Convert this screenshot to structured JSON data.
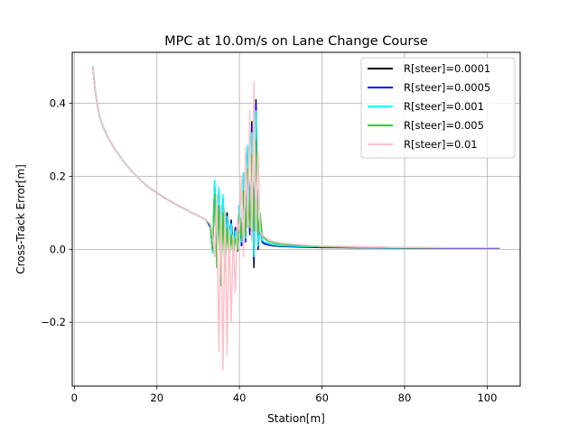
{
  "chart_data": {
    "type": "line",
    "title": "MPC at 10.0m/s on Lane Change Course",
    "xlabel": "Station[m]",
    "ylabel": "Cross-Track Error[m]",
    "xlim": [
      -0.5,
      108
    ],
    "ylim": [
      -0.375,
      0.54
    ],
    "xticks": [
      0,
      20,
      40,
      60,
      80,
      100
    ],
    "xtick_labels": [
      "0",
      "20",
      "40",
      "60",
      "80",
      "100"
    ],
    "yticks": [
      -0.2,
      0.0,
      0.2,
      0.4
    ],
    "ytick_labels": [
      "−0.2",
      "0.0",
      "0.2",
      "0.4"
    ],
    "grid": true,
    "legend_position": "top-right",
    "series": [
      {
        "name": "R[steer]=0.0001",
        "color": "#000000",
        "x": [
          4.5,
          5,
          5.5,
          6,
          6.5,
          7,
          8,
          9,
          10,
          12,
          14,
          16,
          18,
          20,
          22,
          24,
          26,
          28,
          30,
          32,
          33,
          33.5,
          34,
          34.5,
          35,
          35.5,
          36,
          36.5,
          37,
          37.5,
          38,
          38.5,
          39,
          39.5,
          40,
          40.5,
          41,
          41.5,
          42,
          42.5,
          43,
          43.5,
          44,
          44.5,
          45,
          45.5,
          46,
          47,
          48,
          50,
          55,
          60,
          70,
          80,
          90,
          100,
          103
        ],
        "y": [
          0.5,
          0.44,
          0.4,
          0.37,
          0.35,
          0.335,
          0.31,
          0.29,
          0.272,
          0.24,
          0.213,
          0.19,
          0.17,
          0.155,
          0.14,
          0.127,
          0.115,
          0.103,
          0.092,
          0.08,
          0.06,
          -0.01,
          0.18,
          0.02,
          0.16,
          -0.02,
          0.14,
          0.03,
          0.1,
          0.02,
          0.08,
          0.005,
          0.06,
          -0.005,
          0.12,
          0.01,
          0.2,
          0.03,
          0.28,
          0.05,
          0.35,
          -0.05,
          0.41,
          0.0,
          0.08,
          0.02,
          0.015,
          0.012,
          0.01,
          0.008,
          0.006,
          0.005,
          0.004,
          0.003,
          0.003,
          0.003,
          0.003
        ]
      },
      {
        "name": "R[steer]=0.0005",
        "color": "#0000ff",
        "x": [
          4.5,
          5,
          5.5,
          6,
          6.5,
          7,
          8,
          9,
          10,
          12,
          14,
          16,
          18,
          20,
          22,
          24,
          26,
          28,
          30,
          32,
          33,
          33.5,
          34,
          34.5,
          35,
          35.5,
          36,
          36.5,
          37,
          37.5,
          38,
          38.5,
          39,
          39.5,
          40,
          40.5,
          41,
          41.5,
          42,
          42.5,
          43,
          43.5,
          44,
          44.5,
          45,
          45.5,
          46,
          47,
          48,
          50,
          55,
          60,
          70,
          80,
          90,
          100,
          103
        ],
        "y": [
          0.5,
          0.44,
          0.4,
          0.37,
          0.35,
          0.335,
          0.31,
          0.29,
          0.272,
          0.24,
          0.213,
          0.19,
          0.17,
          0.155,
          0.14,
          0.127,
          0.115,
          0.103,
          0.092,
          0.08,
          0.06,
          -0.005,
          0.18,
          0.0,
          0.16,
          -0.03,
          0.14,
          0.02,
          0.09,
          0.015,
          0.075,
          0.0,
          0.055,
          0.0,
          0.12,
          0.01,
          0.2,
          0.02,
          0.28,
          0.04,
          0.34,
          -0.03,
          0.4,
          0.005,
          0.08,
          0.02,
          0.016,
          0.013,
          0.011,
          0.009,
          0.007,
          0.006,
          0.005,
          0.004,
          0.003,
          0.003,
          0.003
        ]
      },
      {
        "name": "R[steer]=0.001",
        "color": "#00ffff",
        "x": [
          4.5,
          5,
          5.5,
          6,
          6.5,
          7,
          8,
          9,
          10,
          12,
          14,
          16,
          18,
          20,
          22,
          24,
          26,
          28,
          30,
          32,
          33,
          33.5,
          34,
          34.5,
          35,
          35.5,
          36,
          36.5,
          37,
          37.5,
          38,
          38.5,
          39,
          39.5,
          40,
          40.5,
          41,
          41.5,
          42,
          42.5,
          43,
          43.5,
          44,
          44.5,
          45,
          45.5,
          46,
          47,
          48,
          50,
          55,
          60,
          70,
          80,
          90,
          100,
          103
        ],
        "y": [
          0.5,
          0.44,
          0.4,
          0.37,
          0.35,
          0.335,
          0.31,
          0.29,
          0.272,
          0.24,
          0.213,
          0.19,
          0.17,
          0.155,
          0.14,
          0.127,
          0.115,
          0.103,
          0.092,
          0.08,
          0.065,
          -0.01,
          0.19,
          -0.02,
          0.17,
          -0.05,
          0.15,
          0.0,
          0.09,
          0.01,
          0.07,
          -0.01,
          0.05,
          0.0,
          0.12,
          0.02,
          0.21,
          0.03,
          0.285,
          0.06,
          0.32,
          -0.02,
          0.38,
          0.01,
          0.09,
          0.025,
          0.02,
          0.016,
          0.013,
          0.01,
          0.008,
          0.007,
          0.005,
          0.004,
          0.004,
          0.004,
          0.004
        ]
      },
      {
        "name": "R[steer]=0.005",
        "color": "#32cd32",
        "x": [
          4.5,
          5,
          5.5,
          6,
          6.5,
          7,
          8,
          9,
          10,
          12,
          14,
          16,
          18,
          20,
          22,
          24,
          26,
          28,
          30,
          32,
          33,
          33.5,
          34,
          34.5,
          35,
          35.5,
          36,
          36.5,
          37,
          37.5,
          38,
          38.5,
          39,
          39.5,
          40,
          40.5,
          41,
          41.5,
          42,
          42.5,
          43,
          43.5,
          44,
          44.5,
          45,
          45.5,
          46,
          47,
          48,
          50,
          55,
          60,
          70,
          80,
          90,
          100,
          103
        ],
        "y": [
          0.5,
          0.44,
          0.4,
          0.37,
          0.35,
          0.335,
          0.31,
          0.29,
          0.272,
          0.24,
          0.213,
          0.19,
          0.17,
          0.155,
          0.14,
          0.127,
          0.115,
          0.103,
          0.092,
          0.08,
          0.065,
          0.0,
          0.15,
          -0.05,
          0.12,
          -0.1,
          0.1,
          -0.06,
          0.06,
          -0.03,
          0.04,
          -0.02,
          0.03,
          0.0,
          0.1,
          0.03,
          0.16,
          0.04,
          0.22,
          0.06,
          0.26,
          0.05,
          0.3,
          0.04,
          0.1,
          0.04,
          0.03,
          0.022,
          0.018,
          0.014,
          0.01,
          0.008,
          0.006,
          0.005,
          0.004,
          0.004,
          0.004
        ]
      },
      {
        "name": "R[steer]=0.01",
        "color": "#ffc0cb",
        "x": [
          4.5,
          5,
          5.5,
          6,
          6.5,
          7,
          8,
          9,
          10,
          12,
          14,
          16,
          18,
          20,
          22,
          24,
          26,
          28,
          30,
          32,
          33,
          33.5,
          34,
          34.5,
          35,
          35.5,
          36,
          36.5,
          37,
          37.5,
          38,
          38.5,
          39,
          39.5,
          40,
          40.5,
          41,
          41.5,
          42,
          42.5,
          43,
          43.5,
          44,
          44.5,
          45,
          45.5,
          46,
          47,
          48,
          50,
          55,
          60,
          70,
          80,
          90,
          100,
          103
        ],
        "y": [
          0.5,
          0.44,
          0.4,
          0.37,
          0.35,
          0.335,
          0.31,
          0.29,
          0.272,
          0.24,
          0.213,
          0.19,
          0.17,
          0.155,
          0.14,
          0.127,
          0.115,
          0.103,
          0.092,
          0.08,
          0.07,
          0.04,
          -0.02,
          0.15,
          -0.28,
          0.12,
          -0.33,
          0.1,
          -0.29,
          0.06,
          -0.2,
          0.04,
          -0.12,
          0.08,
          0.05,
          0.2,
          -0.02,
          0.28,
          0.06,
          0.38,
          0.02,
          0.46,
          0.05,
          0.27,
          0.05,
          0.04,
          0.035,
          0.028,
          0.022,
          0.017,
          0.012,
          0.009,
          0.007,
          0.005,
          0.004,
          0.004,
          0.004
        ]
      }
    ]
  }
}
